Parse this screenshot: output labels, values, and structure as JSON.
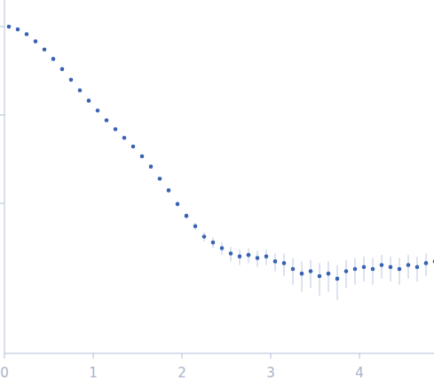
{
  "chart_data": {
    "type": "scatter",
    "log": "y",
    "tick_labels": "x",
    "color": "#3a62b4",
    "marker": "circle",
    "x": [
      0.05,
      0.15,
      0.25,
      0.35,
      0.45,
      0.55,
      0.65,
      0.75,
      0.85,
      0.95,
      1.05,
      1.15,
      1.25,
      1.35,
      1.45,
      1.55,
      1.65,
      1.75,
      1.85,
      1.95,
      2.05,
      2.15,
      2.25,
      2.35,
      2.45,
      2.55,
      2.65,
      2.75,
      2.85,
      2.95,
      3.05,
      3.15,
      3.25,
      3.35,
      3.45,
      3.55,
      3.65,
      3.75,
      3.85,
      3.95,
      4.05,
      4.15,
      4.25,
      4.35,
      4.45,
      4.55,
      4.65,
      4.75,
      4.85
    ],
    "values": [
      1.0,
      0.93,
      0.82,
      0.68,
      0.55,
      0.43,
      0.33,
      0.25,
      0.19,
      0.145,
      0.112,
      0.087,
      0.069,
      0.055,
      0.044,
      0.034,
      0.026,
      0.019,
      0.014,
      0.0098,
      0.0072,
      0.0055,
      0.0042,
      0.0036,
      0.0031,
      0.0027,
      0.0025,
      0.0026,
      0.0024,
      0.0025,
      0.0022,
      0.0021,
      0.0018,
      0.0016,
      0.0017,
      0.0015,
      0.0016,
      0.0014,
      0.0017,
      0.0018,
      0.0019,
      0.0018,
      0.002,
      0.0019,
      0.0018,
      0.002,
      0.0019,
      0.0021,
      0.0022
    ],
    "errors": [
      0.003,
      0.003,
      0.003,
      0.003,
      0.002,
      0.002,
      0.002,
      0.002,
      0.0015,
      0.0015,
      0.0012,
      0.001,
      0.001,
      0.0009,
      0.0008,
      0.0007,
      0.0006,
      0.0006,
      0.0005,
      0.0005,
      0.0005,
      0.0005,
      0.0005,
      0.0005,
      0.0005,
      0.0005,
      0.0005,
      0.0005,
      0.0005,
      0.0005,
      0.0005,
      0.0006,
      0.0006,
      0.0006,
      0.0006,
      0.0006,
      0.0006,
      0.0006,
      0.0006,
      0.0006,
      0.0006,
      0.0006,
      0.0006,
      0.0006,
      0.0006,
      0.0006,
      0.0006,
      0.0006,
      0.0006
    ],
    "xlim": [
      0,
      4.85
    ],
    "xticks": [
      0,
      1,
      2,
      3,
      4
    ],
    "ylim": [
      0.0002,
      2
    ],
    "yticks": [
      0.01,
      0.1,
      1
    ]
  }
}
